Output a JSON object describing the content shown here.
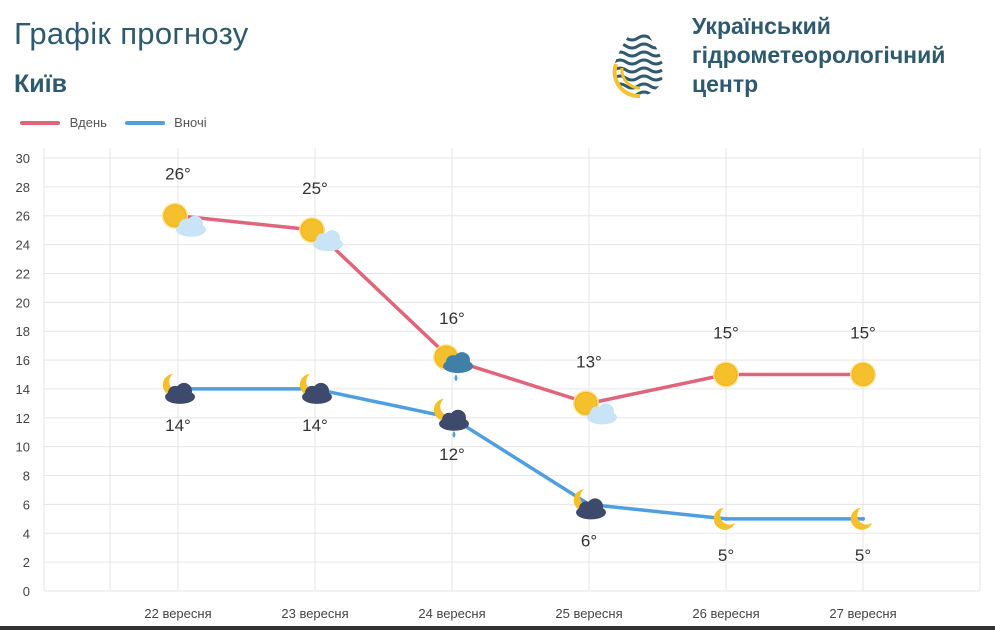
{
  "header": {
    "title": "Графік прогнозу",
    "city": "Київ",
    "org_lines": [
      "Український",
      "гідрометеорологічний",
      "центр"
    ]
  },
  "legend": [
    {
      "name": "Вдень",
      "color": "#e0657a"
    },
    {
      "name": "Вночі",
      "color": "#4f9fe0"
    }
  ],
  "chart_data": {
    "type": "line",
    "categories": [
      "22 вересня",
      "23 вересня",
      "24 вересня",
      "25 вересня",
      "26 вересня",
      "27 вересня"
    ],
    "series": [
      {
        "name": "Вдень",
        "color": "#e0657a",
        "values": [
          26,
          25,
          16,
          13,
          15,
          15
        ],
        "labels": [
          "26°",
          "25°",
          "16°",
          "13°",
          "15°",
          "15°"
        ],
        "icons": [
          "sun-cloud-icon",
          "sun-cloud-icon",
          "sun-rain-cloud-icon",
          "sun-cloud-icon",
          "sun-icon",
          "sun-icon"
        ]
      },
      {
        "name": "Вночі",
        "color": "#4f9fe0",
        "values": [
          14,
          14,
          12,
          6,
          5,
          5
        ],
        "labels": [
          "14°",
          "14°",
          "12°",
          "6°",
          "5°",
          "5°"
        ],
        "icons": [
          "moon-cloud-icon",
          "moon-cloud-icon",
          "moon-rain-cloud-icon",
          "moon-cloud-icon",
          "moon-icon",
          "moon-icon"
        ]
      }
    ],
    "ylim": [
      0,
      30
    ],
    "yticks": [
      0,
      2,
      4,
      6,
      8,
      10,
      12,
      14,
      16,
      18,
      20,
      22,
      24,
      26,
      28,
      30
    ],
    "grid": true,
    "legend_position": "top-left"
  }
}
